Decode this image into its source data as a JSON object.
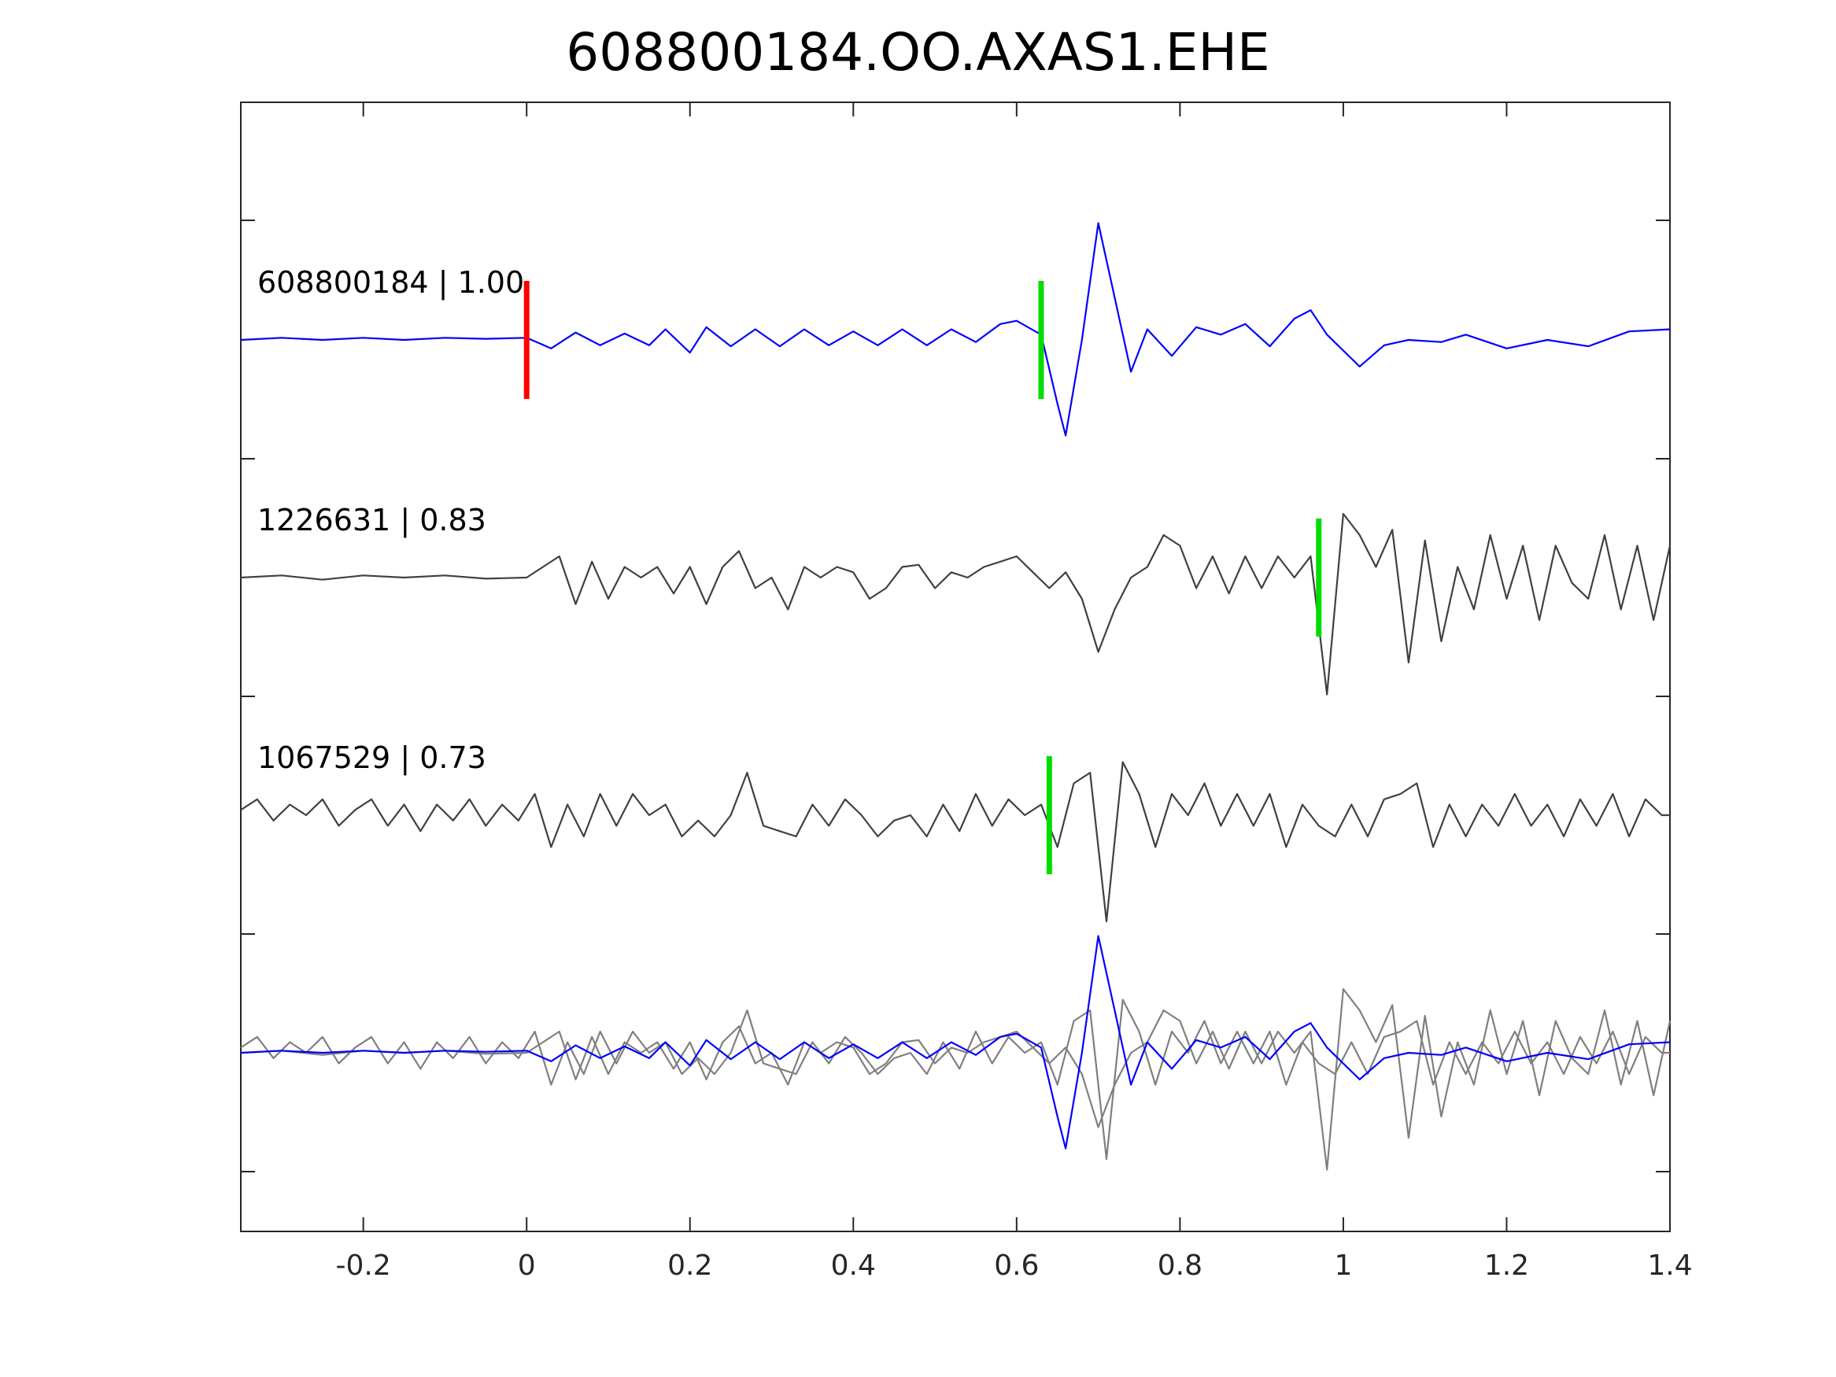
{
  "chart_data": {
    "type": "line",
    "title": "608800184.OO.AXAS1.EHE",
    "xlabel": "",
    "ylabel": "",
    "xlim": [
      -0.35,
      1.4
    ],
    "x_ticks": [
      {
        "value": -0.2,
        "label": "-0.2"
      },
      {
        "value": 0,
        "label": "0"
      },
      {
        "value": 0.2,
        "label": "0.2"
      },
      {
        "value": 0.4,
        "label": "0.4"
      },
      {
        "value": 0.6,
        "label": "0.6"
      },
      {
        "value": 0.8,
        "label": "0.8"
      },
      {
        "value": 1,
        "label": "1"
      },
      {
        "value": 1.2,
        "label": "1.2"
      },
      {
        "value": 1.4,
        "label": "1.4"
      }
    ],
    "grid": false,
    "series": [
      {
        "id": "608800184",
        "label": "608800184 | 1.00",
        "color": "#0000ff",
        "picks": [
          {
            "time": 0.0,
            "color": "#ff0000"
          },
          {
            "time": 0.63,
            "color": "#00dd00"
          }
        ],
        "points": [
          [
            -0.35,
            0.0
          ],
          [
            -0.3,
            0.02
          ],
          [
            -0.25,
            0.0
          ],
          [
            -0.2,
            0.02
          ],
          [
            -0.15,
            0.0
          ],
          [
            -0.1,
            0.02
          ],
          [
            -0.05,
            0.01
          ],
          [
            0.0,
            0.02
          ],
          [
            0.03,
            -0.08
          ],
          [
            0.06,
            0.07
          ],
          [
            0.09,
            -0.05
          ],
          [
            0.12,
            0.06
          ],
          [
            0.15,
            -0.05
          ],
          [
            0.17,
            0.1
          ],
          [
            0.2,
            -0.12
          ],
          [
            0.22,
            0.12
          ],
          [
            0.25,
            -0.06
          ],
          [
            0.28,
            0.1
          ],
          [
            0.31,
            -0.06
          ],
          [
            0.34,
            0.1
          ],
          [
            0.37,
            -0.05
          ],
          [
            0.4,
            0.08
          ],
          [
            0.43,
            -0.05
          ],
          [
            0.46,
            0.1
          ],
          [
            0.49,
            -0.05
          ],
          [
            0.52,
            0.1
          ],
          [
            0.55,
            -0.02
          ],
          [
            0.58,
            0.15
          ],
          [
            0.6,
            0.18
          ],
          [
            0.63,
            0.05
          ],
          [
            0.65,
            -0.6
          ],
          [
            0.66,
            -0.9
          ],
          [
            0.68,
            0.0
          ],
          [
            0.7,
            1.1
          ],
          [
            0.72,
            0.4
          ],
          [
            0.74,
            -0.3
          ],
          [
            0.76,
            0.1
          ],
          [
            0.79,
            -0.15
          ],
          [
            0.82,
            0.12
          ],
          [
            0.85,
            0.05
          ],
          [
            0.88,
            0.15
          ],
          [
            0.91,
            -0.06
          ],
          [
            0.94,
            0.2
          ],
          [
            0.96,
            0.28
          ],
          [
            0.98,
            0.05
          ],
          [
            1.0,
            -0.1
          ],
          [
            1.02,
            -0.25
          ],
          [
            1.05,
            -0.05
          ],
          [
            1.08,
            0.0
          ],
          [
            1.12,
            -0.02
          ],
          [
            1.15,
            0.05
          ],
          [
            1.2,
            -0.08
          ],
          [
            1.25,
            0.0
          ],
          [
            1.3,
            -0.06
          ],
          [
            1.35,
            0.08
          ],
          [
            1.4,
            0.1
          ]
        ]
      },
      {
        "id": "1226631",
        "label": "1226631 | 0.83",
        "color": "#404040",
        "picks": [
          {
            "time": 0.97,
            "color": "#00dd00"
          }
        ],
        "points": [
          [
            -0.35,
            0.0
          ],
          [
            -0.3,
            0.02
          ],
          [
            -0.25,
            -0.02
          ],
          [
            -0.2,
            0.02
          ],
          [
            -0.15,
            0.0
          ],
          [
            -0.1,
            0.02
          ],
          [
            -0.05,
            -0.01
          ],
          [
            0.0,
            0.0
          ],
          [
            0.02,
            0.1
          ],
          [
            0.04,
            0.2
          ],
          [
            0.06,
            -0.25
          ],
          [
            0.08,
            0.15
          ],
          [
            0.1,
            -0.2
          ],
          [
            0.12,
            0.1
          ],
          [
            0.14,
            0.0
          ],
          [
            0.16,
            0.1
          ],
          [
            0.18,
            -0.15
          ],
          [
            0.2,
            0.1
          ],
          [
            0.22,
            -0.25
          ],
          [
            0.24,
            0.1
          ],
          [
            0.26,
            0.25
          ],
          [
            0.28,
            -0.1
          ],
          [
            0.3,
            0.0
          ],
          [
            0.32,
            -0.3
          ],
          [
            0.34,
            0.1
          ],
          [
            0.36,
            0.0
          ],
          [
            0.38,
            0.1
          ],
          [
            0.4,
            0.05
          ],
          [
            0.42,
            -0.2
          ],
          [
            0.44,
            -0.1
          ],
          [
            0.46,
            0.1
          ],
          [
            0.48,
            0.12
          ],
          [
            0.5,
            -0.1
          ],
          [
            0.52,
            0.05
          ],
          [
            0.54,
            0.0
          ],
          [
            0.56,
            0.1
          ],
          [
            0.58,
            0.15
          ],
          [
            0.6,
            0.2
          ],
          [
            0.62,
            0.05
          ],
          [
            0.64,
            -0.1
          ],
          [
            0.66,
            0.05
          ],
          [
            0.68,
            -0.2
          ],
          [
            0.7,
            -0.7
          ],
          [
            0.72,
            -0.3
          ],
          [
            0.74,
            0.0
          ],
          [
            0.76,
            0.1
          ],
          [
            0.78,
            0.4
          ],
          [
            0.8,
            0.3
          ],
          [
            0.82,
            -0.1
          ],
          [
            0.84,
            0.2
          ],
          [
            0.86,
            -0.15
          ],
          [
            0.88,
            0.2
          ],
          [
            0.9,
            -0.1
          ],
          [
            0.92,
            0.2
          ],
          [
            0.94,
            0.0
          ],
          [
            0.96,
            0.2
          ],
          [
            0.98,
            -1.1
          ],
          [
            1.0,
            0.6
          ],
          [
            1.02,
            0.4
          ],
          [
            1.04,
            0.1
          ],
          [
            1.06,
            0.45
          ],
          [
            1.08,
            -0.8
          ],
          [
            1.1,
            0.35
          ],
          [
            1.12,
            -0.6
          ],
          [
            1.14,
            0.1
          ],
          [
            1.16,
            -0.3
          ],
          [
            1.18,
            0.4
          ],
          [
            1.2,
            -0.2
          ],
          [
            1.22,
            0.3
          ],
          [
            1.24,
            -0.4
          ],
          [
            1.26,
            0.3
          ],
          [
            1.28,
            -0.05
          ],
          [
            1.3,
            -0.2
          ],
          [
            1.32,
            0.4
          ],
          [
            1.34,
            -0.3
          ],
          [
            1.36,
            0.3
          ],
          [
            1.38,
            -0.4
          ],
          [
            1.4,
            0.3
          ]
        ]
      },
      {
        "id": "1067529",
        "label": "1067529 | 0.73",
        "color": "#404040",
        "picks": [
          {
            "time": 0.64,
            "color": "#00dd00"
          }
        ],
        "points": [
          [
            -0.35,
            0.05
          ],
          [
            -0.33,
            0.15
          ],
          [
            -0.31,
            -0.05
          ],
          [
            -0.29,
            0.1
          ],
          [
            -0.27,
            0.0
          ],
          [
            -0.25,
            0.15
          ],
          [
            -0.23,
            -0.1
          ],
          [
            -0.21,
            0.05
          ],
          [
            -0.19,
            0.15
          ],
          [
            -0.17,
            -0.1
          ],
          [
            -0.15,
            0.1
          ],
          [
            -0.13,
            -0.15
          ],
          [
            -0.11,
            0.1
          ],
          [
            -0.09,
            -0.05
          ],
          [
            -0.07,
            0.15
          ],
          [
            -0.05,
            -0.1
          ],
          [
            -0.03,
            0.1
          ],
          [
            -0.01,
            -0.05
          ],
          [
            0.01,
            0.2
          ],
          [
            0.03,
            -0.3
          ],
          [
            0.05,
            0.1
          ],
          [
            0.07,
            -0.2
          ],
          [
            0.09,
            0.2
          ],
          [
            0.11,
            -0.1
          ],
          [
            0.13,
            0.2
          ],
          [
            0.15,
            0.0
          ],
          [
            0.17,
            0.1
          ],
          [
            0.19,
            -0.2
          ],
          [
            0.21,
            -0.05
          ],
          [
            0.23,
            -0.2
          ],
          [
            0.25,
            0.0
          ],
          [
            0.27,
            0.4
          ],
          [
            0.29,
            -0.1
          ],
          [
            0.31,
            -0.15
          ],
          [
            0.33,
            -0.2
          ],
          [
            0.35,
            0.1
          ],
          [
            0.37,
            -0.1
          ],
          [
            0.39,
            0.15
          ],
          [
            0.41,
            0.0
          ],
          [
            0.43,
            -0.2
          ],
          [
            0.45,
            -0.05
          ],
          [
            0.47,
            0.0
          ],
          [
            0.49,
            -0.2
          ],
          [
            0.51,
            0.1
          ],
          [
            0.53,
            -0.15
          ],
          [
            0.55,
            0.2
          ],
          [
            0.57,
            -0.1
          ],
          [
            0.59,
            0.15
          ],
          [
            0.61,
            0.0
          ],
          [
            0.63,
            0.1
          ],
          [
            0.65,
            -0.3
          ],
          [
            0.67,
            0.3
          ],
          [
            0.69,
            0.4
          ],
          [
            0.71,
            -1.0
          ],
          [
            0.73,
            0.5
          ],
          [
            0.75,
            0.2
          ],
          [
            0.77,
            -0.3
          ],
          [
            0.79,
            0.2
          ],
          [
            0.81,
            0.0
          ],
          [
            0.83,
            0.3
          ],
          [
            0.85,
            -0.1
          ],
          [
            0.87,
            0.2
          ],
          [
            0.89,
            -0.1
          ],
          [
            0.91,
            0.2
          ],
          [
            0.93,
            -0.3
          ],
          [
            0.95,
            0.1
          ],
          [
            0.97,
            -0.1
          ],
          [
            0.99,
            -0.2
          ],
          [
            1.01,
            0.1
          ],
          [
            1.03,
            -0.2
          ],
          [
            1.05,
            0.15
          ],
          [
            1.07,
            0.2
          ],
          [
            1.09,
            0.3
          ],
          [
            1.11,
            -0.3
          ],
          [
            1.13,
            0.1
          ],
          [
            1.15,
            -0.2
          ],
          [
            1.17,
            0.1
          ],
          [
            1.19,
            -0.1
          ],
          [
            1.21,
            0.2
          ],
          [
            1.23,
            -0.1
          ],
          [
            1.25,
            0.1
          ],
          [
            1.27,
            -0.2
          ],
          [
            1.29,
            0.15
          ],
          [
            1.31,
            -0.1
          ],
          [
            1.33,
            0.2
          ],
          [
            1.35,
            -0.2
          ],
          [
            1.37,
            0.15
          ],
          [
            1.39,
            0.0
          ],
          [
            1.4,
            0.0
          ]
        ]
      }
    ],
    "overlay": {
      "description_visible": false,
      "series_ids": [
        "1226631",
        "1067529",
        "608800184"
      ],
      "colors": [
        "#7f7f7f",
        "#7f7f7f",
        "#0000ff"
      ]
    }
  }
}
